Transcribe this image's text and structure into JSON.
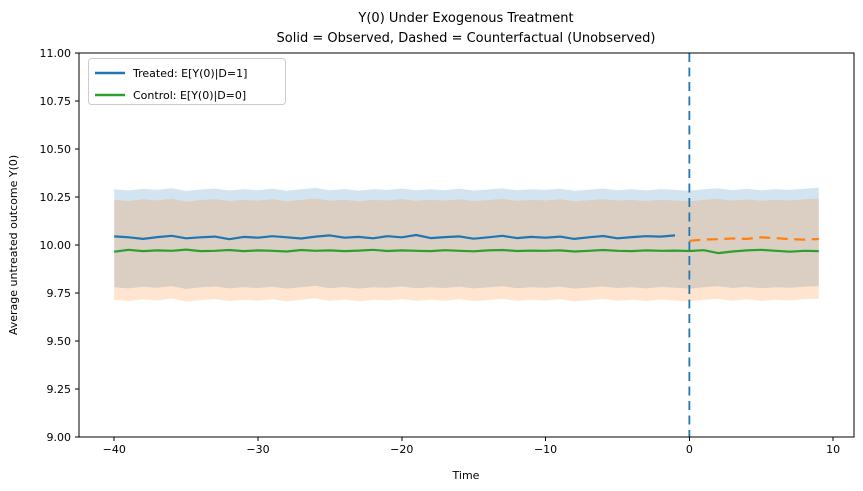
{
  "figure": {
    "background": "#ffffff"
  },
  "chart_data": {
    "type": "line",
    "title": "Y(0) Under Exogenous Treatment",
    "subtitle": "Solid = Observed, Dashed = Counterfactual (Unobserved)",
    "xlabel": "Time",
    "ylabel": "Average untreated outcome Y(0)",
    "xlim": [
      -42.45,
      11.45
    ],
    "ylim": [
      9.0,
      11.0
    ],
    "x_ticks": [
      -40,
      -30,
      -20,
      -10,
      0,
      10
    ],
    "y_ticks": [
      9.0,
      9.25,
      9.5,
      9.75,
      10.0,
      10.25,
      10.5,
      10.75,
      11.0
    ],
    "grid": false,
    "legend_position": "upper-left",
    "legend": [
      {
        "label": "Treated: E[Y(0)|D=1]",
        "color": "#1f77b4"
      },
      {
        "label": "Control: E[Y(0)|D=0]",
        "color": "#2ca02c"
      }
    ],
    "vline": {
      "x": 0,
      "color": "#1f77b4",
      "style": "dashed"
    },
    "bands": [
      {
        "name": "treated-ci",
        "color": "#1f77b4",
        "opacity": 0.2,
        "x": [
          -40,
          -39,
          -38,
          -37,
          -36,
          -35,
          -34,
          -33,
          -32,
          -31,
          -30,
          -29,
          -28,
          -27,
          -26,
          -25,
          -24,
          -23,
          -22,
          -21,
          -20,
          -19,
          -18,
          -17,
          -16,
          -15,
          -14,
          -13,
          -12,
          -11,
          -10,
          -9,
          -8,
          -7,
          -6,
          -5,
          -4,
          -3,
          -2,
          -1,
          0,
          1,
          2,
          3,
          4,
          5,
          6,
          7,
          8,
          9
        ],
        "upper": [
          10.29,
          10.284,
          10.292,
          10.287,
          10.296,
          10.281,
          10.289,
          10.294,
          10.284,
          10.29,
          10.286,
          10.293,
          10.283,
          10.29,
          10.297,
          10.285,
          10.291,
          10.283,
          10.29,
          10.287,
          10.294,
          10.285,
          10.29,
          10.286,
          10.293,
          10.284,
          10.289,
          10.295,
          10.285,
          10.29,
          10.287,
          10.293,
          10.283,
          10.288,
          10.294,
          10.286,
          10.29,
          10.284,
          10.291,
          10.287,
          10.283,
          10.29,
          10.295,
          10.286,
          10.292,
          10.285,
          10.29,
          10.287,
          10.293,
          10.299
        ],
        "lower": [
          9.78,
          9.774,
          9.783,
          9.777,
          9.786,
          9.771,
          9.779,
          9.784,
          9.774,
          9.78,
          9.776,
          9.783,
          9.773,
          9.78,
          9.787,
          9.775,
          9.781,
          9.773,
          9.78,
          9.777,
          9.784,
          9.775,
          9.78,
          9.776,
          9.783,
          9.774,
          9.779,
          9.785,
          9.775,
          9.78,
          9.777,
          9.783,
          9.773,
          9.778,
          9.784,
          9.776,
          9.78,
          9.774,
          9.781,
          9.777,
          9.773,
          9.78,
          9.785,
          9.776,
          9.782,
          9.775,
          9.78,
          9.777,
          9.783,
          9.786
        ]
      },
      {
        "name": "control-ci",
        "color": "#ff7f0e",
        "opacity": 0.2,
        "x": [
          -40,
          -39,
          -38,
          -37,
          -36,
          -35,
          -34,
          -33,
          -32,
          -31,
          -30,
          -29,
          -28,
          -27,
          -26,
          -25,
          -24,
          -23,
          -22,
          -21,
          -20,
          -19,
          -18,
          -17,
          -16,
          -15,
          -14,
          -13,
          -12,
          -11,
          -10,
          -9,
          -8,
          -7,
          -6,
          -5,
          -4,
          -3,
          -2,
          -1,
          0,
          1,
          2,
          3,
          4,
          5,
          6,
          7,
          8,
          9
        ],
        "upper": [
          10.235,
          10.229,
          10.238,
          10.232,
          10.241,
          10.226,
          10.234,
          10.239,
          10.229,
          10.235,
          10.231,
          10.238,
          10.228,
          10.235,
          10.242,
          10.23,
          10.236,
          10.228,
          10.235,
          10.232,
          10.239,
          10.23,
          10.235,
          10.231,
          10.238,
          10.229,
          10.234,
          10.24,
          10.23,
          10.235,
          10.232,
          10.238,
          10.228,
          10.233,
          10.239,
          10.231,
          10.235,
          10.229,
          10.236,
          10.232,
          10.228,
          10.235,
          10.24,
          10.231,
          10.237,
          10.23,
          10.235,
          10.232,
          10.238,
          10.241
        ],
        "lower": [
          9.715,
          9.708,
          9.718,
          9.711,
          9.722,
          9.705,
          9.713,
          9.719,
          9.708,
          9.715,
          9.71,
          9.718,
          9.706,
          9.715,
          9.723,
          9.709,
          9.716,
          9.707,
          9.715,
          9.711,
          9.719,
          9.709,
          9.715,
          9.71,
          9.718,
          9.708,
          9.713,
          9.72,
          9.709,
          9.715,
          9.711,
          9.718,
          9.706,
          9.712,
          9.719,
          9.71,
          9.715,
          9.708,
          9.716,
          9.711,
          9.707,
          9.715,
          9.72,
          9.71,
          9.717,
          9.709,
          9.715,
          9.711,
          9.718,
          9.721
        ]
      }
    ],
    "series": [
      {
        "name": "treated-observed",
        "legend_ref": "Treated: E[Y(0)|D=1]",
        "color": "#1f77b4",
        "style": "solid",
        "x": [
          -40,
          -39,
          -38,
          -37,
          -36,
          -35,
          -34,
          -33,
          -32,
          -31,
          -30,
          -29,
          -28,
          -27,
          -26,
          -25,
          -24,
          -23,
          -22,
          -21,
          -20,
          -19,
          -18,
          -17,
          -16,
          -15,
          -14,
          -13,
          -12,
          -11,
          -10,
          -9,
          -8,
          -7,
          -6,
          -5,
          -4,
          -3,
          -2,
          -1
        ],
        "y": [
          10.045,
          10.04,
          10.032,
          10.041,
          10.048,
          10.035,
          10.04,
          10.044,
          10.03,
          10.042,
          10.038,
          10.046,
          10.04,
          10.034,
          10.044,
          10.05,
          10.038,
          10.042,
          10.035,
          10.046,
          10.04,
          10.052,
          10.036,
          10.041,
          10.045,
          10.033,
          10.04,
          10.048,
          10.036,
          10.042,
          10.038,
          10.044,
          10.032,
          10.04,
          10.047,
          10.035,
          10.041,
          10.046,
          10.044,
          10.05
        ]
      },
      {
        "name": "treated-counterfactual",
        "legend_ref": "Counterfactual (Unobserved)",
        "color": "#ff7f0e",
        "style": "dashed",
        "x": [
          0,
          1,
          2,
          3,
          4,
          5,
          6,
          7,
          8,
          9
        ],
        "y": [
          10.022,
          10.028,
          10.03,
          10.034,
          10.032,
          10.04,
          10.036,
          10.03,
          10.028,
          10.031
        ]
      },
      {
        "name": "control-observed",
        "legend_ref": "Control: E[Y(0)|D=0]",
        "color": "#2ca02c",
        "style": "solid",
        "x": [
          -40,
          -39,
          -38,
          -37,
          -36,
          -35,
          -34,
          -33,
          -32,
          -31,
          -30,
          -29,
          -28,
          -27,
          -26,
          -25,
          -24,
          -23,
          -22,
          -21,
          -20,
          -19,
          -18,
          -17,
          -16,
          -15,
          -14,
          -13,
          -12,
          -11,
          -10,
          -9,
          -8,
          -7,
          -6,
          -5,
          -4,
          -3,
          -2,
          -1,
          0,
          1,
          2,
          3,
          4,
          5,
          6,
          7,
          8,
          9
        ],
        "y": [
          9.965,
          9.975,
          9.968,
          9.972,
          9.97,
          9.976,
          9.968,
          9.97,
          9.974,
          9.968,
          9.972,
          9.97,
          9.966,
          9.974,
          9.97,
          9.972,
          9.968,
          9.971,
          9.975,
          9.969,
          9.972,
          9.97,
          9.968,
          9.973,
          9.97,
          9.967,
          9.972,
          9.974,
          9.969,
          9.971,
          9.97,
          9.972,
          9.966,
          9.97,
          9.974,
          9.97,
          9.968,
          9.972,
          9.97,
          9.971,
          9.969,
          9.973,
          9.958,
          9.966,
          9.972,
          9.975,
          9.97,
          9.965,
          9.97,
          9.968
        ]
      }
    ]
  }
}
